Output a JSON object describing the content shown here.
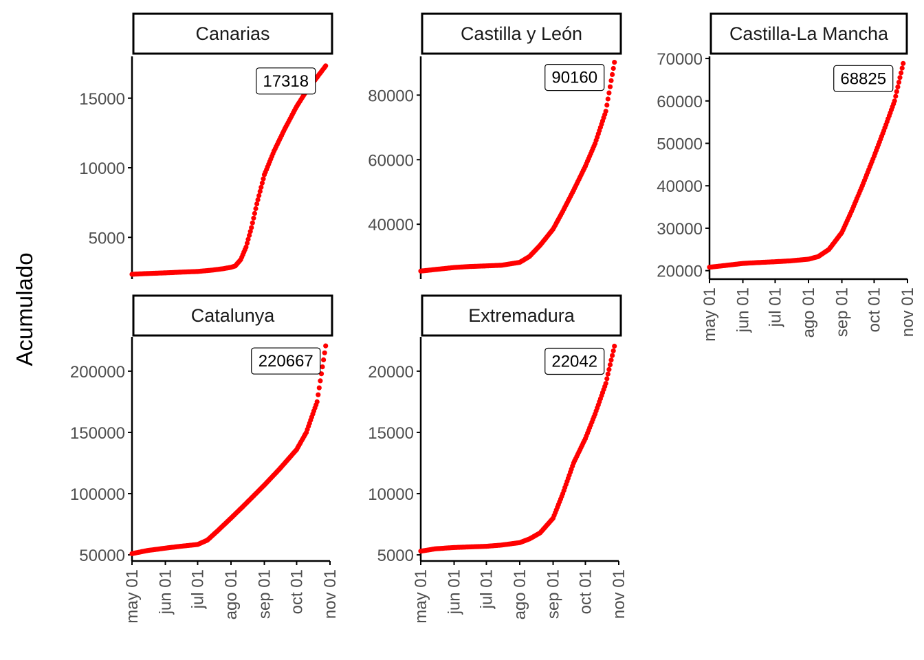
{
  "chart_data": {
    "type": "scatter",
    "facet_layout": "3 columns, 2 rows",
    "ylabel": "Acumulado",
    "xlabel": "",
    "x_axis": {
      "type": "date",
      "ticks": [
        "2020-05-01",
        "2020-06-01",
        "2020-07-01",
        "2020-08-01",
        "2020-09-01",
        "2020-10-01",
        "2020-11-01"
      ],
      "tick_labels": [
        "may 01",
        "jun 01",
        "jul 01",
        "ago 01",
        "sep 01",
        "oct 01",
        "nov 01"
      ],
      "xlim": [
        "2020-05-01",
        "2020-11-01"
      ]
    },
    "colors": {
      "points": "#ff0000",
      "axis": "#000000",
      "tick_text": "#4d4d4d"
    },
    "grid": false,
    "panels": [
      {
        "title": "Canarias",
        "label": "17318",
        "ylim": [
          2000,
          18000
        ],
        "y_ticks": [
          5000,
          10000,
          15000
        ],
        "y_tick_labels": [
          "5000",
          "10000",
          "15000"
        ],
        "x_labels_shown": false,
        "start": "2020-05-01",
        "end": "2020-10-28",
        "series": [
          [
            "2020-05-01",
            2350
          ],
          [
            "2020-05-15",
            2400
          ],
          [
            "2020-06-01",
            2450
          ],
          [
            "2020-06-15",
            2500
          ],
          [
            "2020-07-01",
            2550
          ],
          [
            "2020-07-15",
            2650
          ],
          [
            "2020-07-25",
            2750
          ],
          [
            "2020-08-01",
            2850
          ],
          [
            "2020-08-05",
            2950
          ],
          [
            "2020-08-10",
            3400
          ],
          [
            "2020-08-15",
            4300
          ],
          [
            "2020-08-20",
            5700
          ],
          [
            "2020-08-25",
            7400
          ],
          [
            "2020-09-01",
            9500
          ],
          [
            "2020-09-10",
            11200
          ],
          [
            "2020-09-20",
            12800
          ],
          [
            "2020-10-01",
            14400
          ],
          [
            "2020-10-10",
            15500
          ],
          [
            "2020-10-20",
            16500
          ],
          [
            "2020-10-28",
            17318
          ]
        ]
      },
      {
        "title": "Castilla y León",
        "label": "90160",
        "ylim": [
          23000,
          92000
        ],
        "y_ticks": [
          40000,
          60000,
          80000
        ],
        "y_tick_labels": [
          "40000",
          "60000",
          "80000"
        ],
        "x_labels_shown": false,
        "start": "2020-05-01",
        "end": "2020-10-28",
        "series": [
          [
            "2020-05-01",
            25500
          ],
          [
            "2020-05-15",
            26000
          ],
          [
            "2020-06-01",
            26600
          ],
          [
            "2020-06-15",
            26900
          ],
          [
            "2020-07-01",
            27100
          ],
          [
            "2020-07-15",
            27300
          ],
          [
            "2020-08-01",
            28200
          ],
          [
            "2020-08-10",
            30000
          ],
          [
            "2020-08-20",
            33500
          ],
          [
            "2020-09-01",
            38500
          ],
          [
            "2020-09-10",
            44000
          ],
          [
            "2020-09-20",
            50500
          ],
          [
            "2020-10-01",
            58000
          ],
          [
            "2020-10-10",
            65000
          ],
          [
            "2020-10-20",
            75000
          ],
          [
            "2020-10-28",
            90160
          ]
        ]
      },
      {
        "title": "Castilla-La Mancha",
        "label": "68825",
        "ylim": [
          18000,
          70500
        ],
        "y_ticks": [
          20000,
          30000,
          40000,
          50000,
          60000,
          70000
        ],
        "y_tick_labels": [
          "20000",
          "30000",
          "40000",
          "50000",
          "60000",
          "70000"
        ],
        "x_labels_shown": true,
        "start": "2020-05-01",
        "end": "2020-10-28",
        "series": [
          [
            "2020-05-01",
            20800
          ],
          [
            "2020-05-15",
            21200
          ],
          [
            "2020-06-01",
            21700
          ],
          [
            "2020-06-15",
            21900
          ],
          [
            "2020-07-01",
            22100
          ],
          [
            "2020-07-15",
            22300
          ],
          [
            "2020-08-01",
            22700
          ],
          [
            "2020-08-10",
            23300
          ],
          [
            "2020-08-20",
            25000
          ],
          [
            "2020-09-01",
            29000
          ],
          [
            "2020-09-10",
            34000
          ],
          [
            "2020-09-20",
            40000
          ],
          [
            "2020-10-01",
            47000
          ],
          [
            "2020-10-10",
            53000
          ],
          [
            "2020-10-20",
            60000
          ],
          [
            "2020-10-28",
            68825
          ]
        ]
      },
      {
        "title": "Catalunya",
        "label": "220667",
        "ylim": [
          45000,
          228000
        ],
        "y_ticks": [
          50000,
          100000,
          150000,
          200000
        ],
        "y_tick_labels": [
          "50000",
          "100000",
          "150000",
          "200000"
        ],
        "x_labels_shown": true,
        "start": "2020-05-01",
        "end": "2020-10-28",
        "series": [
          [
            "2020-05-01",
            51000
          ],
          [
            "2020-05-15",
            53500
          ],
          [
            "2020-06-01",
            55500
          ],
          [
            "2020-06-15",
            57000
          ],
          [
            "2020-07-01",
            58500
          ],
          [
            "2020-07-10",
            62000
          ],
          [
            "2020-07-20",
            70000
          ],
          [
            "2020-08-01",
            80000
          ],
          [
            "2020-08-15",
            92000
          ],
          [
            "2020-09-01",
            107000
          ],
          [
            "2020-09-15",
            120000
          ],
          [
            "2020-10-01",
            136000
          ],
          [
            "2020-10-10",
            150000
          ],
          [
            "2020-10-20",
            175000
          ],
          [
            "2020-10-28",
            220667
          ]
        ]
      },
      {
        "title": "Extremadura",
        "label": "22042",
        "ylim": [
          4500,
          22800
        ],
        "y_ticks": [
          5000,
          10000,
          15000,
          20000
        ],
        "y_tick_labels": [
          "5000",
          "10000",
          "15000",
          "20000"
        ],
        "x_labels_shown": true,
        "start": "2020-05-01",
        "end": "2020-10-28",
        "series": [
          [
            "2020-05-01",
            5300
          ],
          [
            "2020-05-15",
            5500
          ],
          [
            "2020-06-01",
            5600
          ],
          [
            "2020-06-15",
            5650
          ],
          [
            "2020-07-01",
            5700
          ],
          [
            "2020-07-15",
            5800
          ],
          [
            "2020-08-01",
            6000
          ],
          [
            "2020-08-10",
            6300
          ],
          [
            "2020-08-20",
            6800
          ],
          [
            "2020-09-01",
            8000
          ],
          [
            "2020-09-10",
            10000
          ],
          [
            "2020-09-20",
            12500
          ],
          [
            "2020-10-01",
            14500
          ],
          [
            "2020-10-10",
            16500
          ],
          [
            "2020-10-20",
            19000
          ],
          [
            "2020-10-28",
            22042
          ]
        ]
      }
    ]
  }
}
